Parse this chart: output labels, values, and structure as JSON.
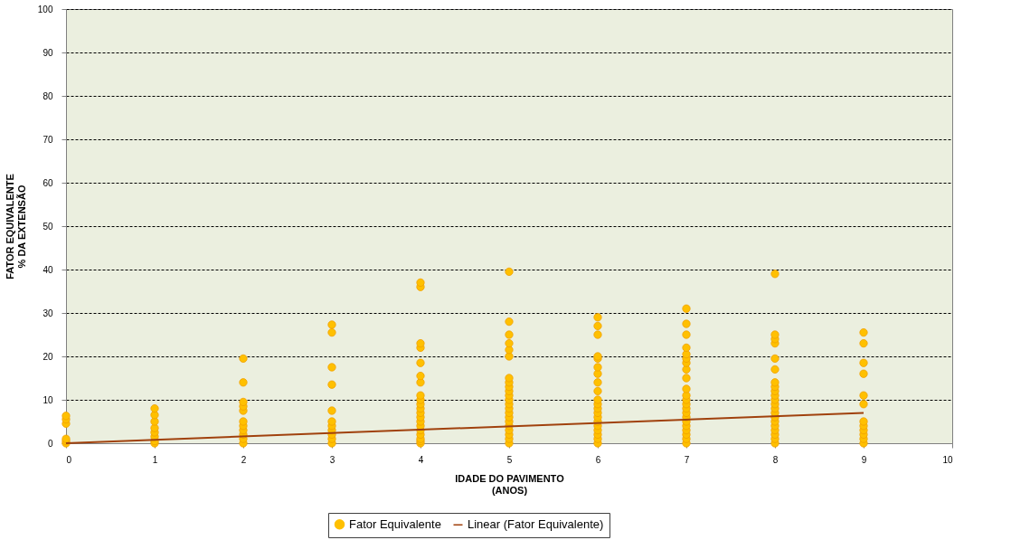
{
  "chart_data": {
    "type": "scatter",
    "xlabel": "IDADE DO PAVIMENTO\n(ANOS)",
    "ylabel": "FATOR EQUIVALENTE\n% DA EXTENSÃO",
    "xlim": [
      0,
      10
    ],
    "xticks": [
      0,
      1,
      2,
      3,
      4,
      5,
      6,
      7,
      8,
      9,
      10
    ],
    "ylim": [
      0,
      100
    ],
    "yticks": [
      0,
      10,
      20,
      30,
      40,
      50,
      60,
      70,
      80,
      90,
      100
    ],
    "grid": "y",
    "legend": "bottom",
    "series": [
      {
        "name": "Fator Equivalente",
        "color": "#ffc000",
        "marker": "circle",
        "x": [
          0,
          0,
          0,
          0,
          0,
          0,
          1,
          1,
          1,
          1,
          1,
          1,
          1,
          1,
          2,
          2,
          2,
          2,
          2,
          2,
          2,
          2,
          2,
          2,
          2,
          3,
          3,
          3,
          3,
          3,
          3,
          3,
          3,
          3,
          3,
          3,
          4,
          4,
          4,
          4,
          4,
          4,
          4,
          4,
          4,
          4,
          4,
          4,
          4,
          4,
          4,
          4,
          4,
          4,
          4,
          4,
          5,
          5,
          5,
          5,
          5,
          5,
          5,
          5,
          5,
          5,
          5,
          5,
          5,
          5,
          5,
          5,
          5,
          5,
          5,
          5,
          5,
          5,
          6,
          6,
          6,
          6,
          6,
          6,
          6,
          6,
          6,
          6,
          6,
          6,
          6,
          6,
          6,
          6,
          6,
          6,
          6,
          6,
          7,
          7,
          7,
          7,
          7,
          7,
          7,
          7,
          7,
          7,
          7,
          7,
          7,
          7,
          7,
          7,
          7,
          7,
          7,
          7,
          7,
          7,
          8,
          8,
          8,
          8,
          8,
          8,
          8,
          8,
          8,
          8,
          8,
          8,
          8,
          8,
          8,
          8,
          8,
          8,
          8,
          8,
          8,
          9,
          9,
          9,
          9,
          9,
          9,
          9,
          9,
          9,
          9,
          9,
          9
        ],
        "values": [
          0,
          0.5,
          1,
          4.5,
          5.5,
          6.3,
          0,
          0.5,
          1.5,
          2.5,
          3.5,
          5,
          6.5,
          8,
          0,
          1,
          2,
          3,
          4,
          5,
          7.5,
          8.5,
          9.5,
          14,
          19.5,
          0,
          1,
          2,
          3,
          4,
          5,
          7.5,
          13.5,
          17.5,
          25.5,
          27.3,
          0,
          0.5,
          1,
          2,
          3,
          4,
          5,
          6,
          7,
          8,
          9,
          10,
          11,
          14,
          15.5,
          18.5,
          22,
          23,
          36,
          37,
          0,
          1,
          2,
          3,
          4,
          5,
          6,
          7,
          8,
          9,
          10,
          11,
          12,
          13,
          14,
          15,
          20,
          21.5,
          23,
          25,
          28,
          39.5,
          0,
          1,
          2,
          3,
          4,
          5,
          6,
          7,
          8,
          9,
          10,
          12,
          14,
          16,
          17.5,
          19.5,
          20,
          25,
          27,
          29,
          0,
          1,
          2,
          3,
          4,
          5,
          6,
          7,
          8,
          9,
          10,
          11,
          12.5,
          15,
          17,
          18.5,
          19.5,
          20.5,
          22,
          25,
          27.5,
          31,
          0,
          1,
          2,
          3,
          4,
          5,
          6,
          7,
          8,
          9,
          10,
          11,
          12,
          13,
          14,
          17,
          19.5,
          23,
          24,
          25,
          39,
          0,
          1,
          2,
          3,
          4,
          5,
          9,
          11,
          16,
          18.5,
          23,
          25.5
        ]
      },
      {
        "name": "Linear (Fator Equivalente)",
        "type": "line",
        "color": "#a0410d",
        "line_style": "solid",
        "x": [
          0,
          9
        ],
        "values": [
          0,
          7
        ]
      }
    ]
  }
}
